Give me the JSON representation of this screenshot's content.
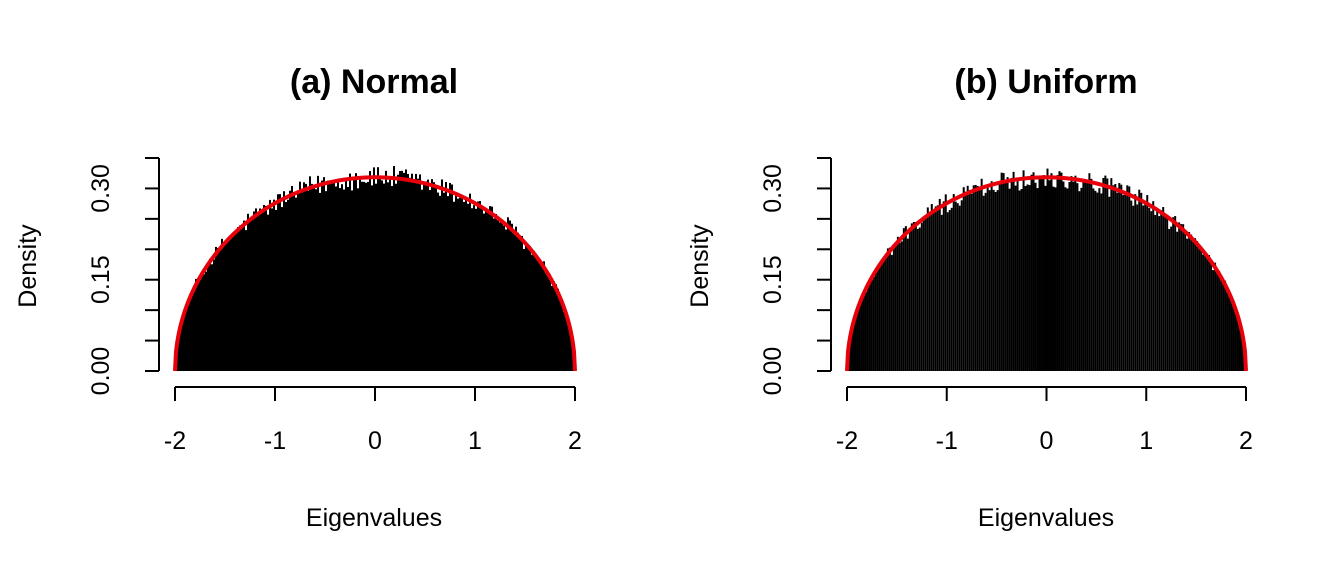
{
  "chart_data": [
    {
      "type": "bar",
      "title": "(a) Normal",
      "xlabel": "Eigenvalues",
      "ylabel": "Density",
      "xlim": [
        -2,
        2
      ],
      "ylim": [
        0,
        0.35
      ],
      "x_ticks": [
        "-2",
        "-1",
        "0",
        "1",
        "2"
      ],
      "y_ticks": [
        "0.00",
        "0.05",
        "0.10",
        "0.15",
        "0.20",
        "0.25",
        "0.30",
        "0.35"
      ],
      "y_tick_labels": [
        "0.00",
        "0.15",
        "0.30"
      ],
      "bin_range": [
        -2,
        2
      ],
      "bin_count": 200,
      "variant": "normal",
      "bar_color": "#000000",
      "curve": {
        "type": "semicircle",
        "radius": 2,
        "color": "#e8000b"
      }
    },
    {
      "type": "bar",
      "title": "(b) Uniform",
      "xlabel": "Eigenvalues",
      "ylabel": "Density",
      "xlim": [
        -2,
        2
      ],
      "ylim": [
        0,
        0.35
      ],
      "x_ticks": [
        "-2",
        "-1",
        "0",
        "1",
        "2"
      ],
      "y_ticks": [
        "0.00",
        "0.05",
        "0.10",
        "0.15",
        "0.20",
        "0.25",
        "0.30",
        "0.35"
      ],
      "y_tick_labels": [
        "0.00",
        "0.15",
        "0.30"
      ],
      "bin_range": [
        -2,
        2
      ],
      "bin_count": 200,
      "variant": "uniform",
      "bar_color": "#000000",
      "curve": {
        "type": "semicircle",
        "radius": 2,
        "color": "#e8000b"
      }
    }
  ]
}
